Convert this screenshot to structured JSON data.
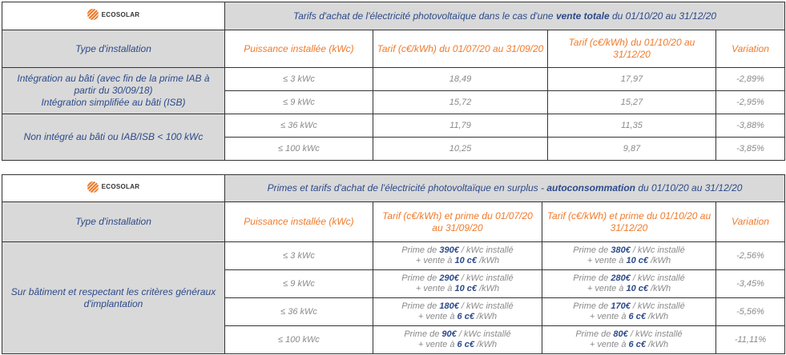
{
  "brand": "ECOSOLAR",
  "colors": {
    "accent": "#f07a2a",
    "text_blue": "#2c4a8a",
    "header_bg": "#d9d9d9"
  },
  "table1": {
    "title_pre": "Tarifs d'achat de l'électricité photovoltaïque dans le cas d'une ",
    "title_bold": "vente totale",
    "title_post": " du 01/10/20 au 31/12/20",
    "headers": [
      "Type d'installation",
      "Puissance installée  (kWc)",
      "Tarif (c€/kWh) du 01/07/20 au 31/09/20",
      "Tarif (c€/kWh) du 01/10/20 au 31/12/20",
      "Variation"
    ],
    "groups": [
      {
        "type_lines": [
          "Intégration au bâti (avec fin de la prime IAB à partir du 30/09/18)",
          "Intégration simplifiée au bâti (ISB)"
        ]
      },
      {
        "type_lines": [
          "Non intégré au bâti ou IAB/ISB  < 100 kWc"
        ]
      }
    ],
    "rows": [
      {
        "power": "≤ 3 kWc",
        "old": "18,49",
        "new": "17,97",
        "variation": "-2,89%"
      },
      {
        "power": "≤ 9 kWc",
        "old": "15,72",
        "new": "15,27",
        "variation": "-2,95%"
      },
      {
        "power": "≤ 36 kWc",
        "old": "11,79",
        "new": "11,35",
        "variation": "-3,88%"
      },
      {
        "power": "≤ 100 kWc",
        "old": "10,25",
        "new": "9,87",
        "variation": "-3,85%"
      }
    ]
  },
  "table2": {
    "title_pre": "Primes et tarifs d'achat de l'électricité photovoltaïque en surplus  -  ",
    "title_bold": "autoconsommation",
    "title_post": " du 01/10/20 au 31/12/20",
    "headers": [
      "Type d'installation",
      "Puissance installée  (kWc)",
      "Tarif (c€/kWh) et prime du 01/07/20 au 31/09/20",
      "Tarif (c€/kWh) et prime du 01/10/20 au 31/12/20",
      "Variation"
    ],
    "type": "Sur bâtiment et respectant les critères généraux d'implantation",
    "labels": {
      "prime_de": "Prime de ",
      "per_kwc": " / kWc installé",
      "vente": "+ vente à ",
      "per_kwh": " /kWh"
    },
    "rows": [
      {
        "power": "≤ 3 kWc",
        "old_prime": "390€",
        "old_sale": "10 c€",
        "new_prime": "380€",
        "new_sale": "10 c€",
        "variation": "-2,56%"
      },
      {
        "power": "≤ 9 kWc",
        "old_prime": "290€",
        "old_sale": "10 c€",
        "new_prime": "280€",
        "new_sale": "10 c€",
        "variation": "-3,45%"
      },
      {
        "power": "≤ 36 kWc",
        "old_prime": "180€",
        "old_sale": "6 c€",
        "new_prime": "170€",
        "new_sale": "6 c€",
        "variation": "-5,56%"
      },
      {
        "power": "≤ 100 kWc",
        "old_prime": "90€",
        "old_sale": "6 c€",
        "new_prime": "80€",
        "new_sale": "6 c€",
        "variation": "-11,11%"
      }
    ]
  }
}
